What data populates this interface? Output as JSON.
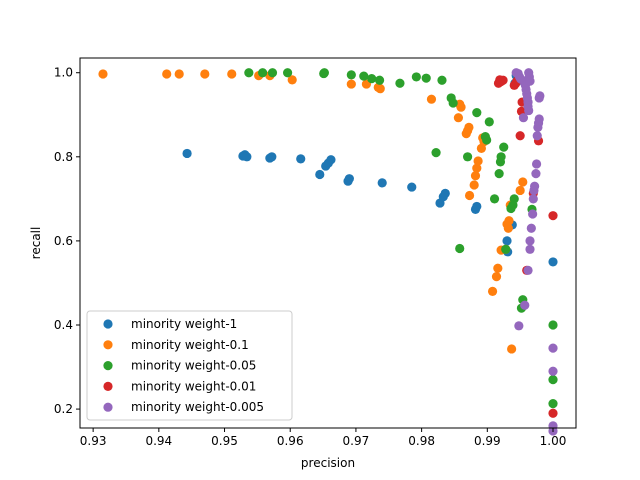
{
  "chart_data": {
    "type": "scatter",
    "xlabel": "precision",
    "ylabel": "recall",
    "xlim": [
      0.928,
      1.0035
    ],
    "ylim": [
      0.155,
      1.035
    ],
    "x_ticks": [
      0.93,
      0.94,
      0.95,
      0.96,
      0.97,
      0.98,
      0.99,
      1.0
    ],
    "x_tick_labels": [
      "0.93",
      "0.94",
      "0.95",
      "0.96",
      "0.97",
      "0.98",
      "0.99",
      "1.00"
    ],
    "y_ticks": [
      0.2,
      0.4,
      0.6,
      0.8,
      1.0
    ],
    "y_tick_labels": [
      "0.2",
      "0.4",
      "0.6",
      "0.8",
      "1.0"
    ],
    "legend_position": "lower-left",
    "series": [
      {
        "name": "minority weight-1",
        "color": "#1f77b4",
        "points": [
          [
            0.9443,
            0.808
          ],
          [
            0.9528,
            0.802
          ],
          [
            0.9531,
            0.805
          ],
          [
            0.9534,
            0.8
          ],
          [
            0.9569,
            0.797
          ],
          [
            0.9572,
            0.8
          ],
          [
            0.9616,
            0.795
          ],
          [
            0.9645,
            0.758
          ],
          [
            0.9654,
            0.778
          ],
          [
            0.9658,
            0.785
          ],
          [
            0.9662,
            0.793
          ],
          [
            0.9688,
            0.742
          ],
          [
            0.969,
            0.748
          ],
          [
            0.974,
            0.738
          ],
          [
            0.9785,
            0.728
          ],
          [
            0.9828,
            0.69
          ],
          [
            0.9833,
            0.705
          ],
          [
            0.9836,
            0.713
          ],
          [
            0.9882,
            0.675
          ],
          [
            0.9884,
            0.682
          ],
          [
            0.993,
            0.6
          ],
          [
            0.9931,
            0.574
          ],
          [
            0.9938,
            0.638
          ],
          [
            0.9942,
            0.975
          ],
          [
            0.9944,
            0.993
          ],
          [
            0.9946,
            0.98
          ],
          [
            1.0,
            0.55
          ]
        ]
      },
      {
        "name": "minority weight-0.1",
        "color": "#ff7f0e",
        "points": [
          [
            0.9315,
            0.997
          ],
          [
            0.9412,
            0.997
          ],
          [
            0.9431,
            0.997
          ],
          [
            0.947,
            0.997
          ],
          [
            0.9511,
            0.997
          ],
          [
            0.9552,
            0.993
          ],
          [
            0.9569,
            0.993
          ],
          [
            0.9603,
            0.983
          ],
          [
            0.9693,
            0.973
          ],
          [
            0.9716,
            0.973
          ],
          [
            0.9734,
            0.965
          ],
          [
            0.9737,
            0.962
          ],
          [
            0.9815,
            0.937
          ],
          [
            0.9856,
            0.893
          ],
          [
            0.9858,
            0.925
          ],
          [
            0.986,
            0.918
          ],
          [
            0.9868,
            0.855
          ],
          [
            0.987,
            0.862
          ],
          [
            0.9872,
            0.87
          ],
          [
            0.9873,
            0.708
          ],
          [
            0.988,
            0.733
          ],
          [
            0.9882,
            0.755
          ],
          [
            0.9884,
            0.773
          ],
          [
            0.9886,
            0.79
          ],
          [
            0.9891,
            0.82
          ],
          [
            0.9893,
            0.845
          ],
          [
            0.9895,
            0.836
          ],
          [
            0.9908,
            0.48
          ],
          [
            0.9914,
            0.515
          ],
          [
            0.9916,
            0.535
          ],
          [
            0.9921,
            0.578
          ],
          [
            0.9928,
            0.58
          ],
          [
            0.993,
            0.64
          ],
          [
            0.9932,
            0.63
          ],
          [
            0.9933,
            0.648
          ],
          [
            0.9935,
            0.685
          ],
          [
            0.9937,
            0.343
          ],
          [
            0.995,
            0.72
          ],
          [
            0.9954,
            0.74
          ]
        ]
      },
      {
        "name": "minority weight-0.05",
        "color": "#2ca02c",
        "points": [
          [
            0.9537,
            1.0
          ],
          [
            0.9558,
            1.0
          ],
          [
            0.9573,
            1.0
          ],
          [
            0.9596,
            1.0
          ],
          [
            0.9651,
            0.998
          ],
          [
            0.9652,
            1.0
          ],
          [
            0.9693,
            0.995
          ],
          [
            0.9712,
            0.992
          ],
          [
            0.9724,
            0.986
          ],
          [
            0.9736,
            0.982
          ],
          [
            0.9767,
            0.975
          ],
          [
            0.9792,
            0.99
          ],
          [
            0.9807,
            0.987
          ],
          [
            0.9822,
            0.81
          ],
          [
            0.9831,
            0.982
          ],
          [
            0.9845,
            0.94
          ],
          [
            0.9848,
            0.928
          ],
          [
            0.9858,
            0.582
          ],
          [
            0.987,
            0.8
          ],
          [
            0.9884,
            0.905
          ],
          [
            0.9897,
            0.848
          ],
          [
            0.9899,
            0.84
          ],
          [
            0.9903,
            0.883
          ],
          [
            0.9911,
            0.7
          ],
          [
            0.9918,
            0.76
          ],
          [
            0.992,
            0.788
          ],
          [
            0.9921,
            0.8
          ],
          [
            0.9925,
            0.823
          ],
          [
            0.9928,
            0.58
          ],
          [
            0.9936,
            0.677
          ],
          [
            0.9939,
            0.685
          ],
          [
            0.9941,
            0.7
          ],
          [
            0.9952,
            0.44
          ],
          [
            0.9954,
            0.46
          ],
          [
            0.9968,
            0.675
          ],
          [
            1.0,
            0.4
          ],
          [
            1.0,
            0.27
          ],
          [
            1.0,
            0.213
          ]
        ]
      },
      {
        "name": "minority weight-0.01",
        "color": "#d62728",
        "points": [
          [
            0.9917,
            0.975
          ],
          [
            0.9919,
            0.983
          ],
          [
            0.9921,
            0.979
          ],
          [
            0.9924,
            0.982
          ],
          [
            0.9941,
            0.97
          ],
          [
            0.9943,
            0.974
          ],
          [
            0.9945,
            0.98
          ],
          [
            0.995,
            0.85
          ],
          [
            0.9952,
            0.908
          ],
          [
            0.9953,
            0.93
          ],
          [
            0.996,
            0.53
          ],
          [
            0.997,
            0.713
          ],
          [
            0.9978,
            0.838
          ],
          [
            1.0,
            0.66
          ],
          [
            1.0,
            0.19
          ]
        ]
      },
      {
        "name": "minority weight-0.005",
        "color": "#9467bd",
        "points": [
          [
            0.9944,
            1.0
          ],
          [
            0.9947,
            0.998
          ],
          [
            0.9949,
            0.99
          ],
          [
            0.9951,
            0.985
          ],
          [
            0.9956,
            0.98
          ],
          [
            0.9957,
            0.975
          ],
          [
            0.9958,
            0.97
          ],
          [
            0.9959,
            0.96
          ],
          [
            0.996,
            0.95
          ],
          [
            0.9961,
            0.94
          ],
          [
            0.9962,
            0.93
          ],
          [
            0.9962,
            0.92
          ],
          [
            0.9963,
            0.91
          ],
          [
            0.9963,
            1.0
          ],
          [
            0.9964,
            0.99
          ],
          [
            0.9965,
            0.98
          ],
          [
            0.9955,
            0.893
          ],
          [
            0.9948,
            0.398
          ],
          [
            0.9957,
            0.447
          ],
          [
            0.9962,
            0.53
          ],
          [
            0.9965,
            0.58
          ],
          [
            0.9965,
            0.6
          ],
          [
            0.9967,
            0.63
          ],
          [
            0.9969,
            0.664
          ],
          [
            0.997,
            0.7
          ],
          [
            0.9971,
            0.72
          ],
          [
            0.9972,
            0.73
          ],
          [
            0.9974,
            0.76
          ],
          [
            0.9975,
            0.783
          ],
          [
            0.9976,
            0.85
          ],
          [
            0.9977,
            0.87
          ],
          [
            0.9978,
            0.88
          ],
          [
            0.9979,
            0.89
          ],
          [
            0.9979,
            0.94
          ],
          [
            0.998,
            0.945
          ],
          [
            1.0,
            0.345
          ],
          [
            1.0,
            0.29
          ],
          [
            1.0,
            0.16
          ],
          [
            1.0,
            0.148
          ]
        ]
      }
    ]
  }
}
